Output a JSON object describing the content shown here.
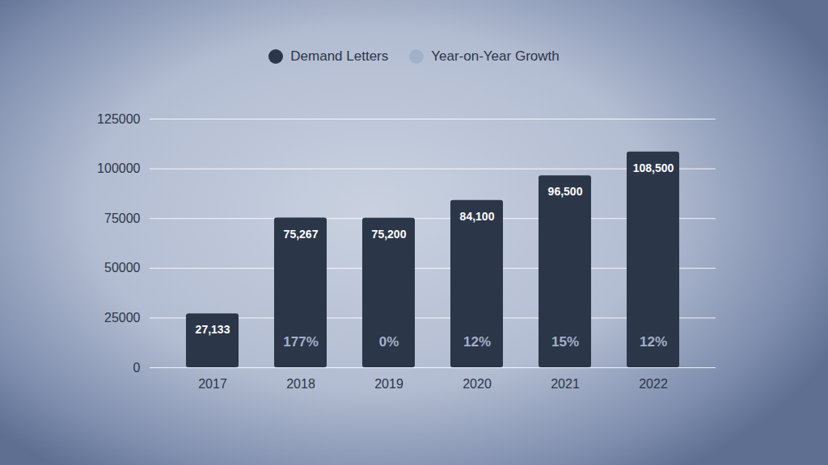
{
  "chart_data": {
    "type": "bar",
    "categories": [
      "2017",
      "2018",
      "2019",
      "2020",
      "2021",
      "2022"
    ],
    "series": [
      {
        "name": "Demand Letters",
        "color": "#2c3649",
        "type": "bar",
        "values": [
          27133,
          75267,
          75200,
          84100,
          96500,
          108500
        ],
        "value_labels": [
          "27,133",
          "75,267",
          "75,200",
          "84,100",
          "96,500",
          "108,500"
        ]
      },
      {
        "name": "Year-on-Year Growth",
        "color": "#a3b0c9",
        "type": "text",
        "values": [
          null,
          177,
          0,
          12,
          15,
          12
        ],
        "value_labels": [
          null,
          "177%",
          "0%",
          "12%",
          "15%",
          "12%"
        ]
      }
    ],
    "ylim": [
      0,
      125000
    ],
    "yticks": [
      0,
      25000,
      50000,
      75000,
      100000,
      125000
    ],
    "grid": true,
    "legend": "top",
    "data_labels": true
  }
}
